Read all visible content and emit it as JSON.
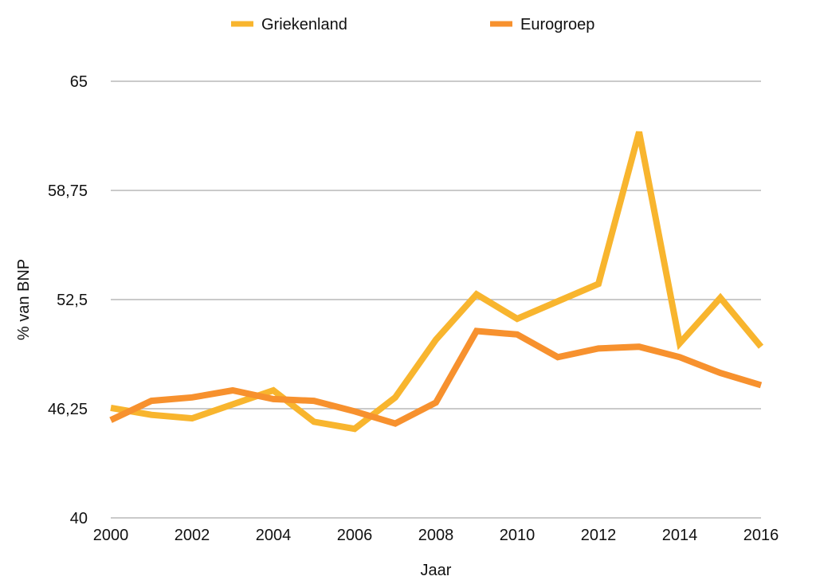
{
  "chart_data": {
    "type": "line",
    "x": [
      2000,
      2001,
      2002,
      2003,
      2004,
      2005,
      2006,
      2007,
      2008,
      2009,
      2010,
      2011,
      2012,
      2013,
      2014,
      2015,
      2016
    ],
    "x_tick_labels": [
      "2000",
      "2002",
      "2004",
      "2006",
      "2008",
      "2010",
      "2012",
      "2014",
      "2016"
    ],
    "xlim": [
      2000,
      2016
    ],
    "ylim": [
      40,
      65
    ],
    "y_ticks": [
      40,
      46.25,
      52.5,
      58.75,
      65
    ],
    "y_tick_labels": [
      "40",
      "46,25",
      "52,5",
      "58,75",
      "65"
    ],
    "xlabel": "Jaar",
    "ylabel": "% van BNP",
    "grid": "horizontal",
    "legend_position": "top-center",
    "series": [
      {
        "name": "Griekenland",
        "color": "#F8B52E",
        "values": [
          46.3,
          45.9,
          45.7,
          46.5,
          47.3,
          45.5,
          45.1,
          46.9,
          50.2,
          52.8,
          51.4,
          52.4,
          53.4,
          62.1,
          50.0,
          52.6,
          49.8
        ]
      },
      {
        "name": "Eurogroep",
        "color": "#F7912E",
        "values": [
          45.6,
          46.7,
          46.9,
          47.3,
          46.8,
          46.7,
          46.1,
          45.4,
          46.6,
          50.7,
          50.5,
          49.2,
          49.7,
          49.8,
          49.2,
          48.3,
          47.6
        ]
      }
    ]
  }
}
